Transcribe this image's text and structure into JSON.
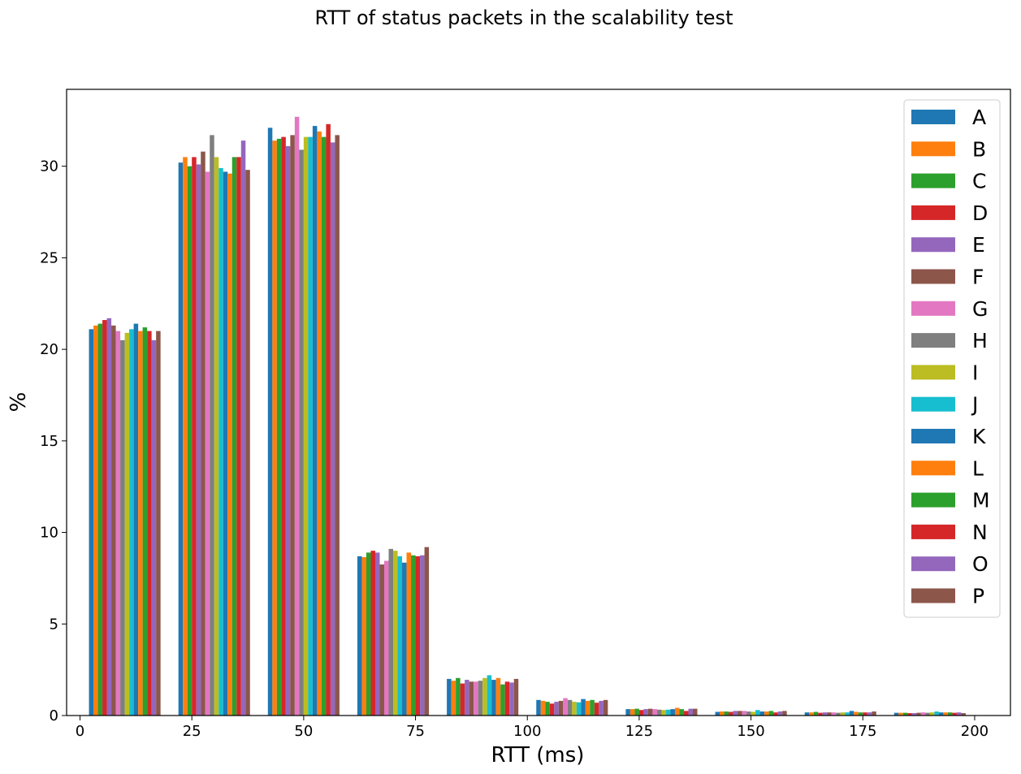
{
  "chart_data": {
    "type": "bar",
    "title": "RTT of status packets in the scalability test",
    "xlabel": "RTT (ms)",
    "ylabel": "%",
    "xlim": [
      -3,
      208
    ],
    "ylim": [
      0,
      34.2
    ],
    "xticks": [
      0,
      25,
      50,
      75,
      100,
      125,
      150,
      175,
      200
    ],
    "yticks": [
      0,
      5,
      10,
      15,
      20,
      25,
      30
    ],
    "grid": false,
    "legend_position": "top-right",
    "bin_starts": [
      2,
      22,
      42,
      62,
      82,
      102,
      122,
      142,
      162,
      182
    ],
    "bin_group_width": 16,
    "series": [
      {
        "name": "A",
        "color": "#1f77b4",
        "values": [
          21.1,
          30.2,
          32.1,
          8.7,
          2.0,
          0.85,
          0.35,
          0.2,
          0.17,
          0.15
        ]
      },
      {
        "name": "B",
        "color": "#ff7f0e",
        "values": [
          21.3,
          30.5,
          31.4,
          8.65,
          1.9,
          0.8,
          0.35,
          0.22,
          0.17,
          0.15
        ]
      },
      {
        "name": "C",
        "color": "#2ca02c",
        "values": [
          21.4,
          30.0,
          31.5,
          8.9,
          2.05,
          0.75,
          0.37,
          0.22,
          0.2,
          0.15
        ]
      },
      {
        "name": "D",
        "color": "#d62728",
        "values": [
          21.6,
          30.5,
          31.6,
          9.0,
          1.75,
          0.65,
          0.3,
          0.2,
          0.15,
          0.13
        ]
      },
      {
        "name": "E",
        "color": "#9467bd",
        "values": [
          21.7,
          30.1,
          31.1,
          8.9,
          1.95,
          0.75,
          0.35,
          0.25,
          0.17,
          0.13
        ]
      },
      {
        "name": "F",
        "color": "#8c564b",
        "values": [
          21.3,
          30.8,
          31.7,
          8.25,
          1.85,
          0.8,
          0.37,
          0.25,
          0.17,
          0.15
        ]
      },
      {
        "name": "G",
        "color": "#e377c2",
        "values": [
          21.0,
          29.7,
          32.7,
          8.45,
          1.85,
          0.95,
          0.35,
          0.25,
          0.17,
          0.17
        ]
      },
      {
        "name": "H",
        "color": "#7f7f7f",
        "values": [
          20.5,
          31.7,
          30.9,
          9.1,
          1.9,
          0.85,
          0.32,
          0.22,
          0.15,
          0.15
        ]
      },
      {
        "name": "I",
        "color": "#bcbd22",
        "values": [
          20.9,
          30.5,
          31.6,
          9.0,
          2.05,
          0.75,
          0.3,
          0.2,
          0.17,
          0.17
        ]
      },
      {
        "name": "J",
        "color": "#17becf",
        "values": [
          21.1,
          29.9,
          31.6,
          8.7,
          2.2,
          0.72,
          0.32,
          0.3,
          0.17,
          0.22
        ]
      },
      {
        "name": "K",
        "color": "#1f77b4",
        "values": [
          21.4,
          29.7,
          32.2,
          8.35,
          1.95,
          0.9,
          0.35,
          0.22,
          0.25,
          0.17
        ]
      },
      {
        "name": "L",
        "color": "#ff7f0e",
        "values": [
          21.0,
          29.6,
          31.9,
          8.9,
          2.05,
          0.8,
          0.42,
          0.22,
          0.2,
          0.17
        ]
      },
      {
        "name": "M",
        "color": "#2ca02c",
        "values": [
          21.2,
          30.5,
          31.6,
          8.75,
          1.7,
          0.85,
          0.35,
          0.25,
          0.17,
          0.17
        ]
      },
      {
        "name": "N",
        "color": "#d62728",
        "values": [
          21.0,
          30.5,
          32.3,
          8.7,
          1.85,
          0.7,
          0.25,
          0.17,
          0.17,
          0.15
        ]
      },
      {
        "name": "O",
        "color": "#9467bd",
        "values": [
          20.5,
          31.4,
          31.3,
          8.75,
          1.8,
          0.8,
          0.37,
          0.22,
          0.17,
          0.17
        ]
      },
      {
        "name": "P",
        "color": "#8c564b",
        "values": [
          21.0,
          29.8,
          31.7,
          9.2,
          2.0,
          0.85,
          0.37,
          0.25,
          0.22,
          0.13
        ]
      }
    ]
  }
}
